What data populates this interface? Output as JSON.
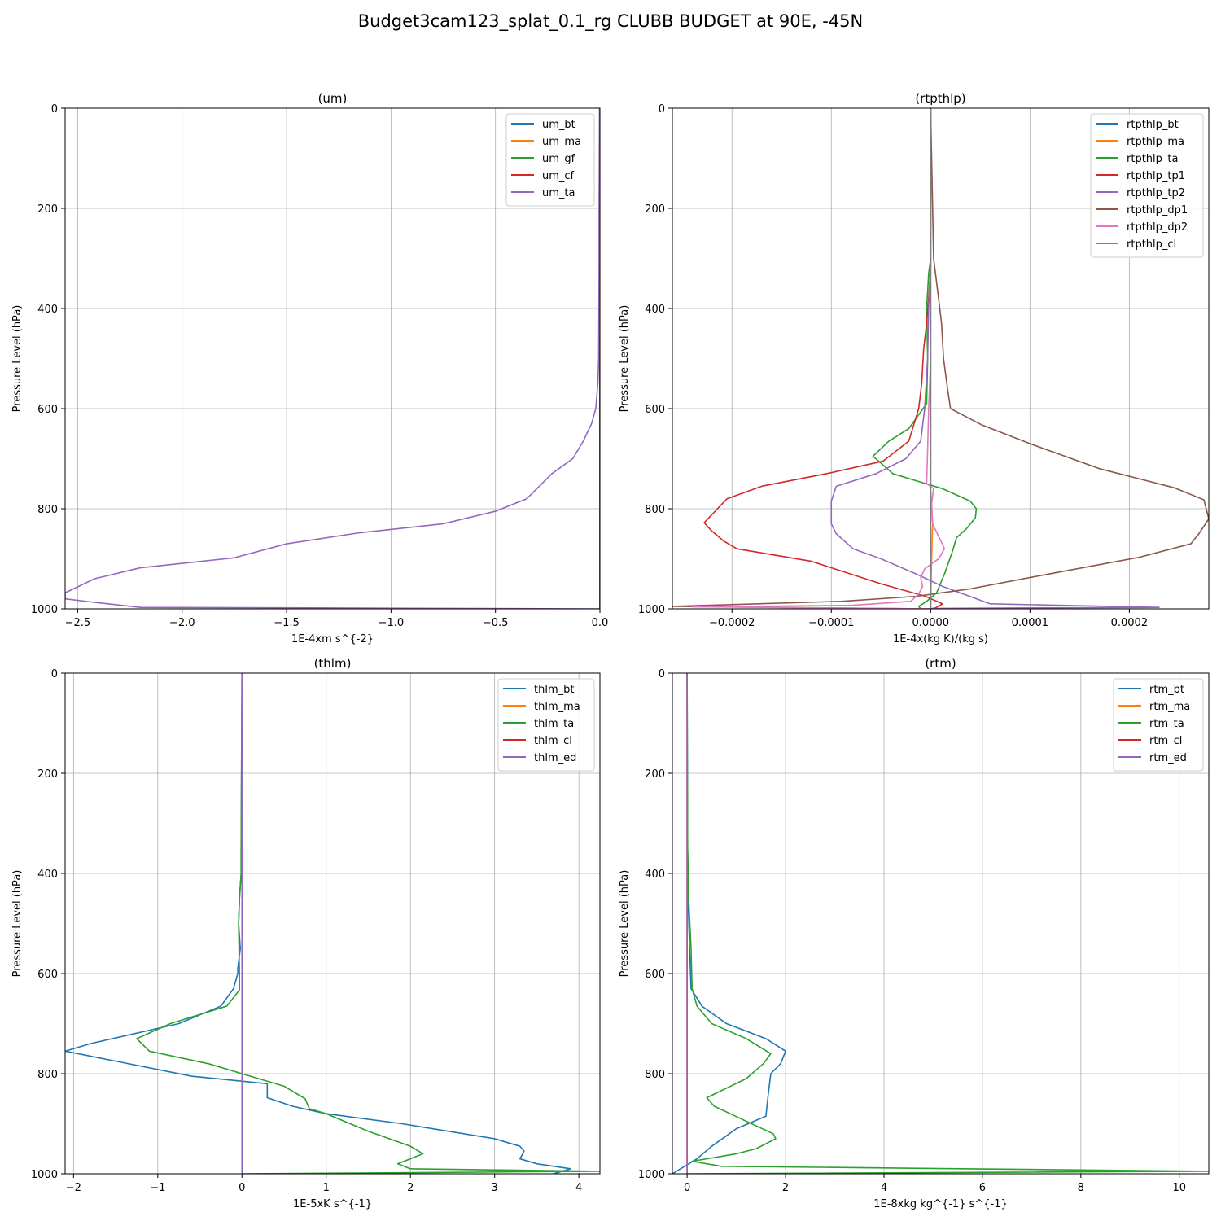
{
  "figure": {
    "suptitle": "Budget3cam123_splat_0.1_rg CLUBB BUDGET at 90E, -45N"
  },
  "colors": [
    "#1f77b4",
    "#ff7f0e",
    "#2ca02c",
    "#d62728",
    "#9467bd",
    "#8c564b",
    "#e377c2",
    "#7f7f7f"
  ],
  "chart_data": [
    {
      "type": "line",
      "title": "(um)",
      "xlabel": "1E-4xm s^{-2}",
      "ylabel": "Pressure Level (hPa)",
      "xlim": [
        -2.56,
        0.0
      ],
      "ylim": [
        1000,
        0
      ],
      "xticks": [
        -2.5,
        -2.0,
        -1.5,
        -1.0,
        -0.5,
        0.0
      ],
      "xtick_labels": [
        "−2.5",
        "−2.0",
        "−1.5",
        "−1.0",
        "−0.5",
        "0.0"
      ],
      "yticks": [
        0,
        200,
        400,
        600,
        800,
        1000
      ],
      "ytick_labels": [
        "0",
        "200",
        "400",
        "600",
        "800",
        "1000"
      ],
      "grid": true,
      "legend": "top-right",
      "series": [
        {
          "name": "um_bt",
          "x": [
            0,
            0,
            0,
            0,
            0,
            0,
            0,
            0,
            0,
            0,
            0
          ],
          "y": [
            0,
            100,
            200,
            300,
            400,
            500,
            600,
            700,
            800,
            900,
            1000
          ]
        },
        {
          "name": "um_ma",
          "x": [
            0,
            0,
            0,
            0,
            0,
            0,
            0,
            0,
            0,
            0,
            0
          ],
          "y": [
            0,
            100,
            200,
            300,
            400,
            500,
            600,
            700,
            800,
            900,
            1000
          ]
        },
        {
          "name": "um_gf",
          "x": [
            0,
            0,
            0,
            0,
            0,
            0,
            0,
            0,
            0,
            0,
            0
          ],
          "y": [
            0,
            100,
            200,
            300,
            400,
            500,
            600,
            700,
            800,
            900,
            1000
          ]
        },
        {
          "name": "um_cf",
          "x": [
            0,
            0,
            0,
            0,
            0,
            0,
            0,
            0,
            0,
            0,
            0
          ],
          "y": [
            0,
            100,
            200,
            300,
            400,
            500,
            600,
            700,
            800,
            900,
            1000
          ]
        },
        {
          "name": "um_ta",
          "x": [
            -0.002,
            -0.003,
            -0.004,
            -0.004,
            -0.005,
            -0.006,
            -0.01,
            -0.02,
            -0.04,
            -0.08,
            -0.13,
            -0.23,
            -0.35,
            -0.5,
            -0.75,
            -1.15,
            -1.5,
            -1.75,
            -2.2,
            -2.42,
            -2.56,
            -2.56,
            -2.42,
            -2.2,
            0
          ],
          "y": [
            0,
            100,
            200,
            300,
            400,
            500,
            550,
            600,
            630,
            665,
            700,
            730,
            780,
            805,
            830,
            848,
            870,
            898,
            918,
            940,
            968,
            980,
            987,
            997,
            1000
          ]
        }
      ]
    },
    {
      "type": "line",
      "title": "(rtpthlp)",
      "xlabel": "1E-4x(kg K)/(kg s)",
      "ylabel": "Pressure Level (hPa)",
      "xlim": [
        -0.00026,
        0.00028
      ],
      "ylim": [
        1000,
        0
      ],
      "xticks": [
        -0.0002,
        -0.0001,
        0.0,
        0.0001,
        0.0002
      ],
      "xtick_labels": [
        "−0.0002",
        "−0.0001",
        "0.0000",
        "0.0001",
        "0.0002"
      ],
      "yticks": [
        0,
        200,
        400,
        600,
        800,
        1000
      ],
      "ytick_labels": [
        "0",
        "200",
        "400",
        "600",
        "800",
        "1000"
      ],
      "grid": true,
      "legend": "top-right",
      "series": [
        {
          "name": "rtpthlp_bt",
          "x": [
            0,
            0,
            0,
            0,
            0,
            0,
            0,
            0,
            0,
            0,
            0
          ],
          "y": [
            0,
            100,
            200,
            300,
            400,
            500,
            600,
            700,
            800,
            900,
            1000
          ]
        },
        {
          "name": "rtpthlp_ma",
          "x": [
            0,
            0,
            0,
            0,
            0,
            0,
            0,
            0,
            0,
            2e-06,
            1e-06,
            0
          ],
          "y": [
            0,
            100,
            200,
            300,
            400,
            500,
            600,
            700,
            760,
            830,
            900,
            1000
          ]
        },
        {
          "name": "rtpthlp_ta",
          "x": [
            0,
            0,
            -2e-06,
            -4e-06,
            -3e-06,
            -4e-06,
            -2.2e-05,
            -4.2e-05,
            -5.8e-05,
            -3.8e-05,
            1.2e-05,
            4e-05,
            4.6e-05,
            4.5e-05,
            3.6e-05,
            2.6e-05,
            2.2e-05,
            1.4e-05,
            6e-06,
            -4e-06,
            -1.2e-05,
            -1e-05,
            0
          ],
          "y": [
            0,
            300,
            330,
            400,
            500,
            590,
            640,
            665,
            695,
            730,
            760,
            785,
            800,
            818,
            840,
            858,
            885,
            930,
            968,
            985,
            995,
            1000,
            1000
          ]
        },
        {
          "name": "rtpthlp_tp1",
          "x": [
            0,
            0,
            -2e-06,
            -4e-06,
            -7e-06,
            -9e-06,
            -1.2e-05,
            -2.2e-05,
            -4.8e-05,
            -0.000105,
            -0.00017,
            -0.000205,
            -0.000228,
            -0.00022,
            -0.000208,
            -0.000195,
            -0.00012,
            -5e-05,
            -5e-06,
            1.2e-05,
            5e-06,
            0
          ],
          "y": [
            0,
            320,
            380,
            430,
            480,
            550,
            600,
            665,
            705,
            730,
            755,
            780,
            828,
            845,
            865,
            880,
            905,
            950,
            975,
            990,
            998,
            1000
          ]
        },
        {
          "name": "rtpthlp_tp2",
          "x": [
            0,
            0,
            -2e-06,
            -3e-06,
            -6e-06,
            -1e-05,
            -2.5e-05,
            -5.5e-05,
            -9.5e-05,
            -0.0001,
            -0.0001,
            -9.5e-05,
            -7.8e-05,
            -5e-05,
            -1.5e-05,
            1.2e-05,
            6e-05,
            0.00018,
            0.00023,
            1e-05,
            0
          ],
          "y": [
            0,
            300,
            400,
            500,
            600,
            665,
            700,
            730,
            755,
            785,
            830,
            850,
            880,
            900,
            930,
            955,
            990,
            995,
            997,
            999,
            1000
          ]
        },
        {
          "name": "rtpthlp_dp1",
          "x": [
            0,
            3e-06,
            8e-06,
            1.1e-05,
            1.3e-05,
            1.7e-05,
            2e-05,
            5.2e-05,
            0.0001,
            0.00017,
            0.000245,
            0.000275,
            0.00028,
            0.00027,
            0.000262,
            0.00021,
            0.00012,
            4e-05,
            -1.5e-05,
            -9e-05,
            -0.00026,
            0
          ],
          "y": [
            0,
            300,
            380,
            430,
            500,
            560,
            600,
            633,
            670,
            720,
            758,
            782,
            820,
            850,
            870,
            897,
            930,
            960,
            975,
            985,
            995,
            1000
          ]
        },
        {
          "name": "rtpthlp_dp2",
          "x": [
            0,
            0,
            -2e-06,
            -3e-06,
            -4e-06,
            3e-06,
            1e-06,
            2e-06,
            1.4e-05,
            8e-06,
            -6e-06,
            -1e-05,
            -8e-06,
            -1.2e-05,
            -2e-05,
            -8e-05,
            -0.00024,
            0
          ],
          "y": [
            0,
            500,
            600,
            680,
            750,
            760,
            790,
            830,
            880,
            900,
            920,
            938,
            955,
            970,
            985,
            993,
            996,
            1000
          ]
        },
        {
          "name": "rtpthlp_cl",
          "x": [
            0,
            0,
            0,
            0,
            0,
            0,
            0,
            0,
            0,
            0,
            0
          ],
          "y": [
            0,
            100,
            200,
            300,
            400,
            500,
            600,
            700,
            800,
            900,
            1000
          ]
        }
      ]
    },
    {
      "type": "line",
      "title": "(thlm)",
      "xlabel": "1E-5xK s^{-1}",
      "ylabel": "Pressure Level (hPa)",
      "xlim": [
        -2.1,
        4.25
      ],
      "ylim": [
        1000,
        0
      ],
      "xticks": [
        -2,
        -1,
        0,
        1,
        2,
        3,
        4
      ],
      "xtick_labels": [
        "−2",
        "−1",
        "0",
        "1",
        "2",
        "3",
        "4"
      ],
      "yticks": [
        0,
        200,
        400,
        600,
        800,
        1000
      ],
      "ytick_labels": [
        "0",
        "200",
        "400",
        "600",
        "800",
        "1000"
      ],
      "grid": true,
      "legend": "top-right",
      "series": [
        {
          "name": "thlm_bt",
          "x": [
            0,
            -0.01,
            -0.01,
            -0.03,
            -0.04,
            -0.02,
            -0.05,
            -0.05,
            -0.1,
            -0.25,
            -0.75,
            -1.8,
            -2.1,
            -1.5,
            -0.6,
            0.3,
            0.3,
            0.6,
            1.0,
            1.9,
            3.0,
            3.3,
            3.35,
            3.3,
            3.5,
            3.9,
            3.7
          ],
          "y": [
            0,
            350,
            400,
            450,
            500,
            550,
            590,
            600,
            630,
            665,
            700,
            740,
            755,
            775,
            805,
            820,
            848,
            865,
            880,
            900,
            930,
            945,
            955,
            970,
            980,
            990,
            1000
          ]
        },
        {
          "name": "thlm_ma",
          "x": [
            0,
            0,
            0,
            0,
            0,
            0,
            0,
            0,
            0,
            0,
            0
          ],
          "y": [
            0,
            100,
            200,
            300,
            400,
            500,
            600,
            700,
            800,
            900,
            1000
          ]
        },
        {
          "name": "thlm_ta",
          "x": [
            0,
            -0.01,
            -0.01,
            -0.03,
            -0.04,
            -0.03,
            -0.03,
            -0.18,
            -0.85,
            -1.25,
            -1.1,
            -0.4,
            0.1,
            0.5,
            0.75,
            0.8,
            1.0,
            1.5,
            2.0,
            2.15,
            1.85,
            2.0,
            4.25,
            0
          ],
          "y": [
            0,
            350,
            400,
            450,
            500,
            600,
            633,
            665,
            700,
            730,
            755,
            780,
            805,
            825,
            850,
            870,
            880,
            915,
            945,
            960,
            980,
            990,
            995,
            1000
          ]
        },
        {
          "name": "thlm_cl",
          "x": [
            0,
            0,
            0,
            0,
            0,
            0,
            0,
            0,
            0,
            0,
            0
          ],
          "y": [
            0,
            100,
            200,
            300,
            400,
            500,
            600,
            700,
            800,
            900,
            1000
          ]
        },
        {
          "name": "thlm_ed",
          "x": [
            0,
            0,
            0,
            0,
            0,
            0,
            0,
            0,
            0,
            0,
            0
          ],
          "y": [
            0,
            100,
            200,
            300,
            400,
            500,
            600,
            700,
            800,
            900,
            1000
          ]
        }
      ]
    },
    {
      "type": "line",
      "title": "(rtm)",
      "xlabel": "1E-8xkg kg^{-1} s^{-1}",
      "ylabel": "Pressure Level (hPa)",
      "xlim": [
        -0.3,
        10.6
      ],
      "ylim": [
        1000,
        0
      ],
      "xticks": [
        0,
        2,
        4,
        6,
        8,
        10
      ],
      "xtick_labels": [
        "0",
        "2",
        "4",
        "6",
        "8",
        "10"
      ],
      "yticks": [
        0,
        200,
        400,
        600,
        800,
        1000
      ],
      "ytick_labels": [
        "0",
        "200",
        "400",
        "600",
        "800",
        "1000"
      ],
      "grid": true,
      "legend": "top-right",
      "series": [
        {
          "name": "rtm_bt",
          "x": [
            0,
            0.01,
            0.02,
            0.02,
            0.05,
            0.08,
            0.3,
            0.8,
            1.6,
            2.0,
            1.9,
            1.7,
            1.65,
            1.6,
            1.0,
            0.5,
            0.2,
            -0.3
          ],
          "y": [
            0,
            350,
            400,
            450,
            550,
            630,
            665,
            700,
            730,
            755,
            780,
            800,
            840,
            885,
            910,
            945,
            970,
            1000
          ]
        },
        {
          "name": "rtm_ma",
          "x": [
            0,
            0,
            0,
            0,
            0,
            0,
            0,
            0,
            0,
            0,
            0
          ],
          "y": [
            0,
            100,
            200,
            300,
            400,
            500,
            600,
            700,
            800,
            900,
            1000
          ]
        },
        {
          "name": "rtm_ta",
          "x": [
            0,
            0.01,
            0.02,
            0.03,
            0.08,
            0.1,
            0.2,
            0.5,
            1.2,
            1.7,
            1.55,
            1.2,
            0.4,
            0.55,
            1.2,
            1.75,
            1.8,
            1.4,
            1.0,
            0.1,
            0.7,
            10.6,
            0
          ],
          "y": [
            0,
            350,
            400,
            450,
            550,
            630,
            665,
            700,
            730,
            760,
            780,
            810,
            848,
            865,
            895,
            920,
            930,
            950,
            960,
            975,
            985,
            995,
            1000
          ]
        },
        {
          "name": "rtm_cl",
          "x": [
            0,
            0,
            0,
            0,
            0,
            0,
            0,
            0,
            0,
            0,
            0
          ],
          "y": [
            0,
            100,
            200,
            300,
            400,
            500,
            600,
            700,
            800,
            900,
            1000
          ]
        },
        {
          "name": "rtm_ed",
          "x": [
            0,
            0,
            0,
            0,
            0,
            0,
            0,
            0,
            0,
            0,
            0
          ],
          "y": [
            0,
            100,
            200,
            300,
            400,
            500,
            600,
            700,
            800,
            900,
            1000
          ]
        }
      ]
    }
  ]
}
